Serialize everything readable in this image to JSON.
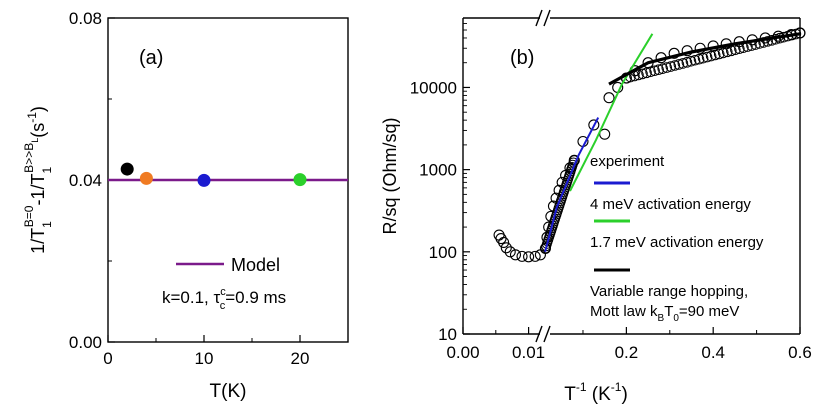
{
  "chart_data": [
    {
      "type": "scatter",
      "panel_label": "(a)",
      "xlabel": "T(K)",
      "ylabel_parts": [
        "1/T",
        "1",
        "B=0",
        "-1/T",
        "1",
        "B>>B",
        "L",
        "(s",
        "-1",
        ")"
      ],
      "xlim": [
        0,
        25
      ],
      "ylim": [
        0,
        0.08
      ],
      "xticks": [
        {
          "v": 0,
          "t": "0"
        },
        {
          "v": 10,
          "t": "10"
        },
        {
          "v": 20,
          "t": "20"
        }
      ],
      "yticks": [
        {
          "v": 0,
          "t": "0.00"
        },
        {
          "v": 0.04,
          "t": "0.04"
        },
        {
          "v": 0.08,
          "t": "0.08"
        }
      ],
      "points": [
        {
          "x": 2,
          "y": 0.0427,
          "color": "#000000"
        },
        {
          "x": 4,
          "y": 0.0404,
          "color": "#f07b22"
        },
        {
          "x": 10,
          "y": 0.0399,
          "color": "#1b1bd0"
        },
        {
          "x": 20,
          "y": 0.0401,
          "color": "#2bd02b"
        }
      ],
      "model": {
        "y": 0.04,
        "color": "#7b1a8a"
      },
      "legend": {
        "model_label": "Model",
        "params": [
          "k=0.1, τ",
          "c",
          "c",
          "=0.9 ms"
        ]
      }
    },
    {
      "type": "scatter",
      "panel_label": "(b)",
      "xlabel_parts": [
        "T",
        "-1",
        " (K",
        "-1",
        ")"
      ],
      "ylabel": "R/sq (Ohm/sq)",
      "yscale": "log",
      "ylim": [
        10,
        70000
      ],
      "x_segments": [
        {
          "range": [
            0.0,
            0.0125
          ],
          "ticks": [
            {
              "v": 0.0,
              "t": "0.00"
            },
            {
              "v": 0.01,
              "t": "0.01"
            }
          ]
        },
        {
          "range": [
            0.0125,
            0.6
          ],
          "ticks": [
            {
              "v": 0.2,
              "t": "0.2"
            },
            {
              "v": 0.4,
              "t": "0.4"
            },
            {
              "v": 0.6,
              "t": "0.6"
            }
          ]
        }
      ],
      "yticks": [
        {
          "v": 10,
          "t": "10"
        },
        {
          "v": 100,
          "t": "100"
        },
        {
          "v": 1000,
          "t": "1000"
        },
        {
          "v": 10000,
          "t": "10000"
        }
      ],
      "experiment": [
        [
          0.0055,
          160
        ],
        [
          0.0058,
          145
        ],
        [
          0.0062,
          130
        ],
        [
          0.0066,
          112
        ],
        [
          0.0072,
          100
        ],
        [
          0.008,
          92
        ],
        [
          0.009,
          88
        ],
        [
          0.01,
          87
        ],
        [
          0.011,
          88
        ],
        [
          0.0118,
          92
        ],
        [
          0.0135,
          110
        ],
        [
          0.017,
          150
        ],
        [
          0.021,
          200
        ],
        [
          0.026,
          270
        ],
        [
          0.032,
          360
        ],
        [
          0.038,
          450
        ],
        [
          0.045,
          560
        ],
        [
          0.052,
          700
        ],
        [
          0.06,
          850
        ],
        [
          0.07,
          1050
        ],
        [
          0.08,
          1300
        ],
        [
          0.1,
          2200
        ],
        [
          0.125,
          3500
        ],
        [
          0.15,
          2700
        ],
        [
          0.16,
          7500
        ],
        [
          0.18,
          10000
        ],
        [
          0.2,
          13000
        ],
        [
          0.22,
          16000
        ],
        [
          0.25,
          20000
        ],
        [
          0.28,
          23000
        ],
        [
          0.31,
          26000
        ],
        [
          0.34,
          28000
        ],
        [
          0.37,
          30000
        ],
        [
          0.4,
          32000
        ],
        [
          0.43,
          34000
        ],
        [
          0.46,
          36000
        ],
        [
          0.49,
          38000
        ],
        [
          0.52,
          40000
        ],
        [
          0.55,
          42000
        ],
        [
          0.58,
          44000
        ],
        [
          0.6,
          46000
        ]
      ],
      "fits": [
        {
          "name": "4 meV activation energy",
          "color": "#1b1bd0",
          "points": [
            [
              0.0128,
              100
            ],
            [
              0.04,
              350
            ],
            [
              0.09,
              1500
            ],
            [
              0.135,
              4300
            ]
          ]
        },
        {
          "name": "1.7 meV activation energy",
          "color": "#2bd02b",
          "points": [
            [
              0.07,
              550
            ],
            [
              0.13,
              2300
            ],
            [
              0.19,
              11000
            ],
            [
              0.26,
              45000
            ]
          ]
        },
        {
          "name": "Variable range hopping,",
          "color": "#000000",
          "points": [
            [
              0.16,
              11000
            ],
            [
              0.25,
              20000
            ],
            [
              0.35,
              27000
            ],
            [
              0.45,
              34000
            ],
            [
              0.6,
              45000
            ]
          ]
        }
      ],
      "legend": {
        "experiment": "experiment",
        "vrh_line2_parts": [
          "Mott law k",
          "B",
          "T",
          "0",
          "=90 meV"
        ]
      }
    }
  ]
}
